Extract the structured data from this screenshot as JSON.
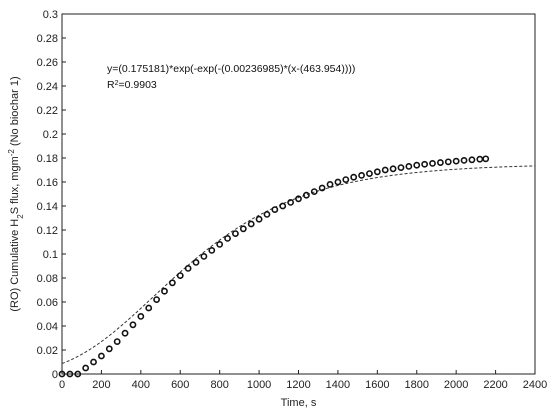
{
  "chart_data": {
    "type": "scatter",
    "xlabel": "Time, s",
    "ylabel_parts": [
      "(RO) Cumulative H",
      "2",
      "S flux, mgm",
      "-2",
      " (No biochar 1)"
    ],
    "xlim": [
      0,
      2400
    ],
    "ylim": [
      0,
      0.3
    ],
    "x_ticks": [
      "0",
      "200",
      "400",
      "600",
      "800",
      "1000",
      "1200",
      "1400",
      "1600",
      "1800",
      "2000",
      "2200",
      "2400"
    ],
    "y_ticks": [
      "0",
      "0.02",
      "0.04",
      "0.06",
      "0.08",
      "0.1",
      "0.12",
      "0.14",
      "0.16",
      "0.18",
      "0.2",
      "0.22",
      "0.24",
      "0.26",
      "0.28",
      "0.3"
    ],
    "grid": false,
    "equation": "y=(0.175181)*exp(-exp(-(0.00236985)*(x-(463.954))))",
    "r2_prefix": "R",
    "r2_sup": "2",
    "r2_suffix": "=0.9903",
    "fit": {
      "a": 0.175181,
      "k": 0.00236985,
      "x0": 463.954,
      "style": "dashed",
      "x_range": [
        0,
        2400
      ]
    },
    "series": [
      {
        "marker": "open-circle",
        "x": [
          0,
          40,
          80,
          120,
          160,
          200,
          240,
          280,
          320,
          360,
          400,
          440,
          480,
          520,
          560,
          600,
          640,
          680,
          720,
          760,
          800,
          840,
          880,
          920,
          960,
          1000,
          1040,
          1080,
          1120,
          1160,
          1200,
          1240,
          1280,
          1320,
          1360,
          1400,
          1440,
          1480,
          1520,
          1560,
          1600,
          1640,
          1680,
          1720,
          1760,
          1800,
          1840,
          1880,
          1920,
          1960,
          2000,
          2040,
          2080,
          2120,
          2150
        ],
        "y": [
          0.0,
          0.0,
          0.0,
          0.005,
          0.01,
          0.015,
          0.021,
          0.027,
          0.034,
          0.041,
          0.048,
          0.055,
          0.062,
          0.069,
          0.076,
          0.082,
          0.088,
          0.093,
          0.098,
          0.103,
          0.108,
          0.113,
          0.117,
          0.121,
          0.125,
          0.129,
          0.133,
          0.137,
          0.14,
          0.143,
          0.146,
          0.149,
          0.152,
          0.155,
          0.158,
          0.16,
          0.162,
          0.164,
          0.1655,
          0.167,
          0.1685,
          0.17,
          0.171,
          0.172,
          0.173,
          0.174,
          0.1748,
          0.1755,
          0.1762,
          0.1768,
          0.1774,
          0.178,
          0.1785,
          0.179,
          0.1793
        ]
      }
    ],
    "colors": {
      "marker": "#111111",
      "fit": "#333333",
      "axis": "#222222"
    }
  }
}
